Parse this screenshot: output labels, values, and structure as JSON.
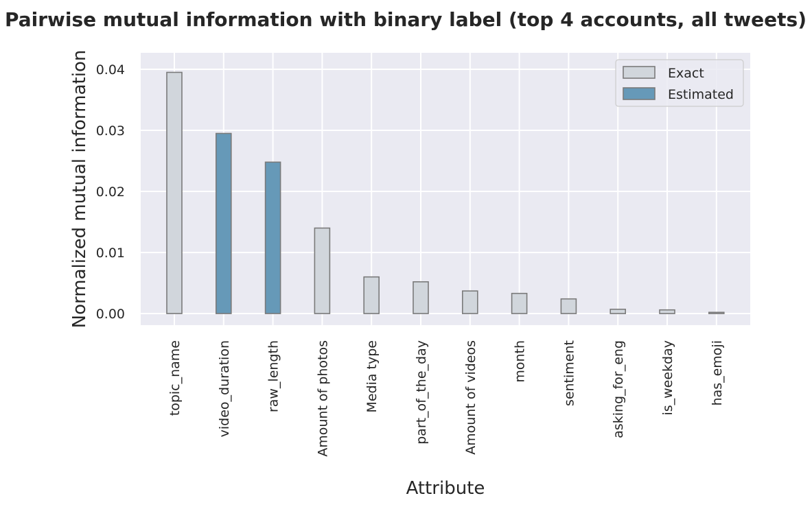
{
  "chart_data": {
    "type": "bar",
    "title": "Pairwise mutual information with binary label (top 4 accounts, all tweets)",
    "xlabel": "Attribute",
    "ylabel": "Normalized mutual information",
    "ylim": [
      -0.0019,
      0.0427
    ],
    "yticks": [
      "0.00",
      "0.01",
      "0.02",
      "0.03",
      "0.04"
    ],
    "ytick_values": [
      0,
      0.01,
      0.02,
      0.03,
      0.04
    ],
    "categories": [
      "topic_name",
      "video_duration",
      "raw_length",
      "Amount of photos",
      "Media type",
      "part_of_the_day",
      "Amount of videos",
      "month",
      "sentiment",
      "asking_for_eng",
      "is_weekday",
      "has_emoji"
    ],
    "values": [
      0.0395,
      0.0295,
      0.0248,
      0.014,
      0.006,
      0.0052,
      0.0037,
      0.0033,
      0.0024,
      0.0007,
      0.0006,
      0.0002
    ],
    "kind": [
      "Exact",
      "Estimated",
      "Estimated",
      "Exact",
      "Exact",
      "Exact",
      "Exact",
      "Exact",
      "Exact",
      "Exact",
      "Exact",
      "Exact"
    ],
    "legend": {
      "position": "top-right",
      "entries": [
        {
          "label": "Exact",
          "color": "#d1d6dc"
        },
        {
          "label": "Estimated",
          "color": "#6699b8"
        }
      ]
    },
    "colors": {
      "Exact": "#d1d6dc",
      "Estimated": "#6699b8",
      "edge": "#7a7a7a",
      "background": "#eaeaf2",
      "grid": "#ffffff"
    },
    "grid": true
  }
}
